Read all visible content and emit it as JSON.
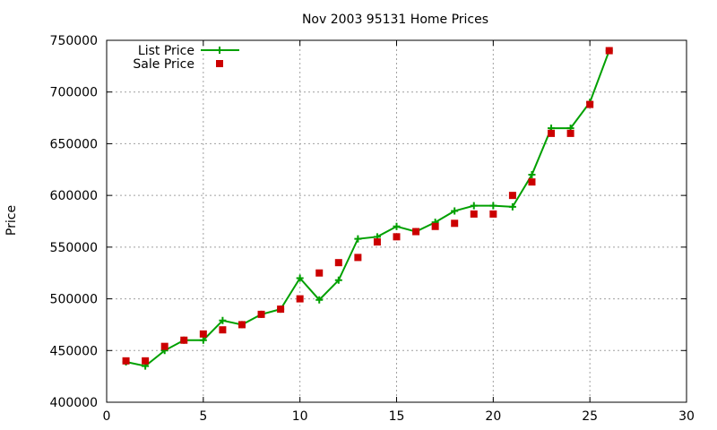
{
  "chart_data": {
    "type": "line",
    "title": "Nov 2003 95131 Home Prices",
    "xlabel": "",
    "ylabel": "Price",
    "xlim": [
      0,
      30
    ],
    "ylim": [
      400000,
      750000
    ],
    "xticks": [
      0,
      5,
      10,
      15,
      20,
      25,
      30
    ],
    "yticks": [
      400000,
      450000,
      500000,
      550000,
      600000,
      650000,
      700000,
      750000
    ],
    "grid": true,
    "legend_position": "top-left",
    "series": [
      {
        "name": "List Price",
        "style": "line-with-plus-markers",
        "color": "#00a000",
        "x": [
          1,
          2,
          3,
          4,
          5,
          6,
          7,
          8,
          9,
          10,
          11,
          12,
          13,
          14,
          15,
          16,
          17,
          18,
          19,
          20,
          21,
          22,
          23,
          24,
          25,
          26
        ],
        "y": [
          439000,
          435000,
          450000,
          460000,
          460000,
          479000,
          475000,
          485000,
          490000,
          520000,
          499000,
          518000,
          558000,
          560000,
          570000,
          565000,
          574000,
          585000,
          590000,
          590000,
          589000,
          620000,
          665000,
          665000,
          690000,
          740000
        ]
      },
      {
        "name": "Sale Price",
        "style": "square-markers",
        "color": "#cc0000",
        "x": [
          1,
          2,
          3,
          4,
          5,
          6,
          7,
          8,
          9,
          10,
          11,
          12,
          13,
          14,
          15,
          16,
          17,
          18,
          19,
          20,
          21,
          22,
          23,
          24,
          25,
          26
        ],
        "y": [
          440000,
          440000,
          454000,
          460000,
          466000,
          470000,
          475000,
          485000,
          490000,
          500000,
          525000,
          535000,
          540000,
          555000,
          560000,
          565000,
          570000,
          573000,
          582000,
          582000,
          600000,
          613000,
          660000,
          660000,
          688000,
          740000
        ]
      }
    ]
  }
}
